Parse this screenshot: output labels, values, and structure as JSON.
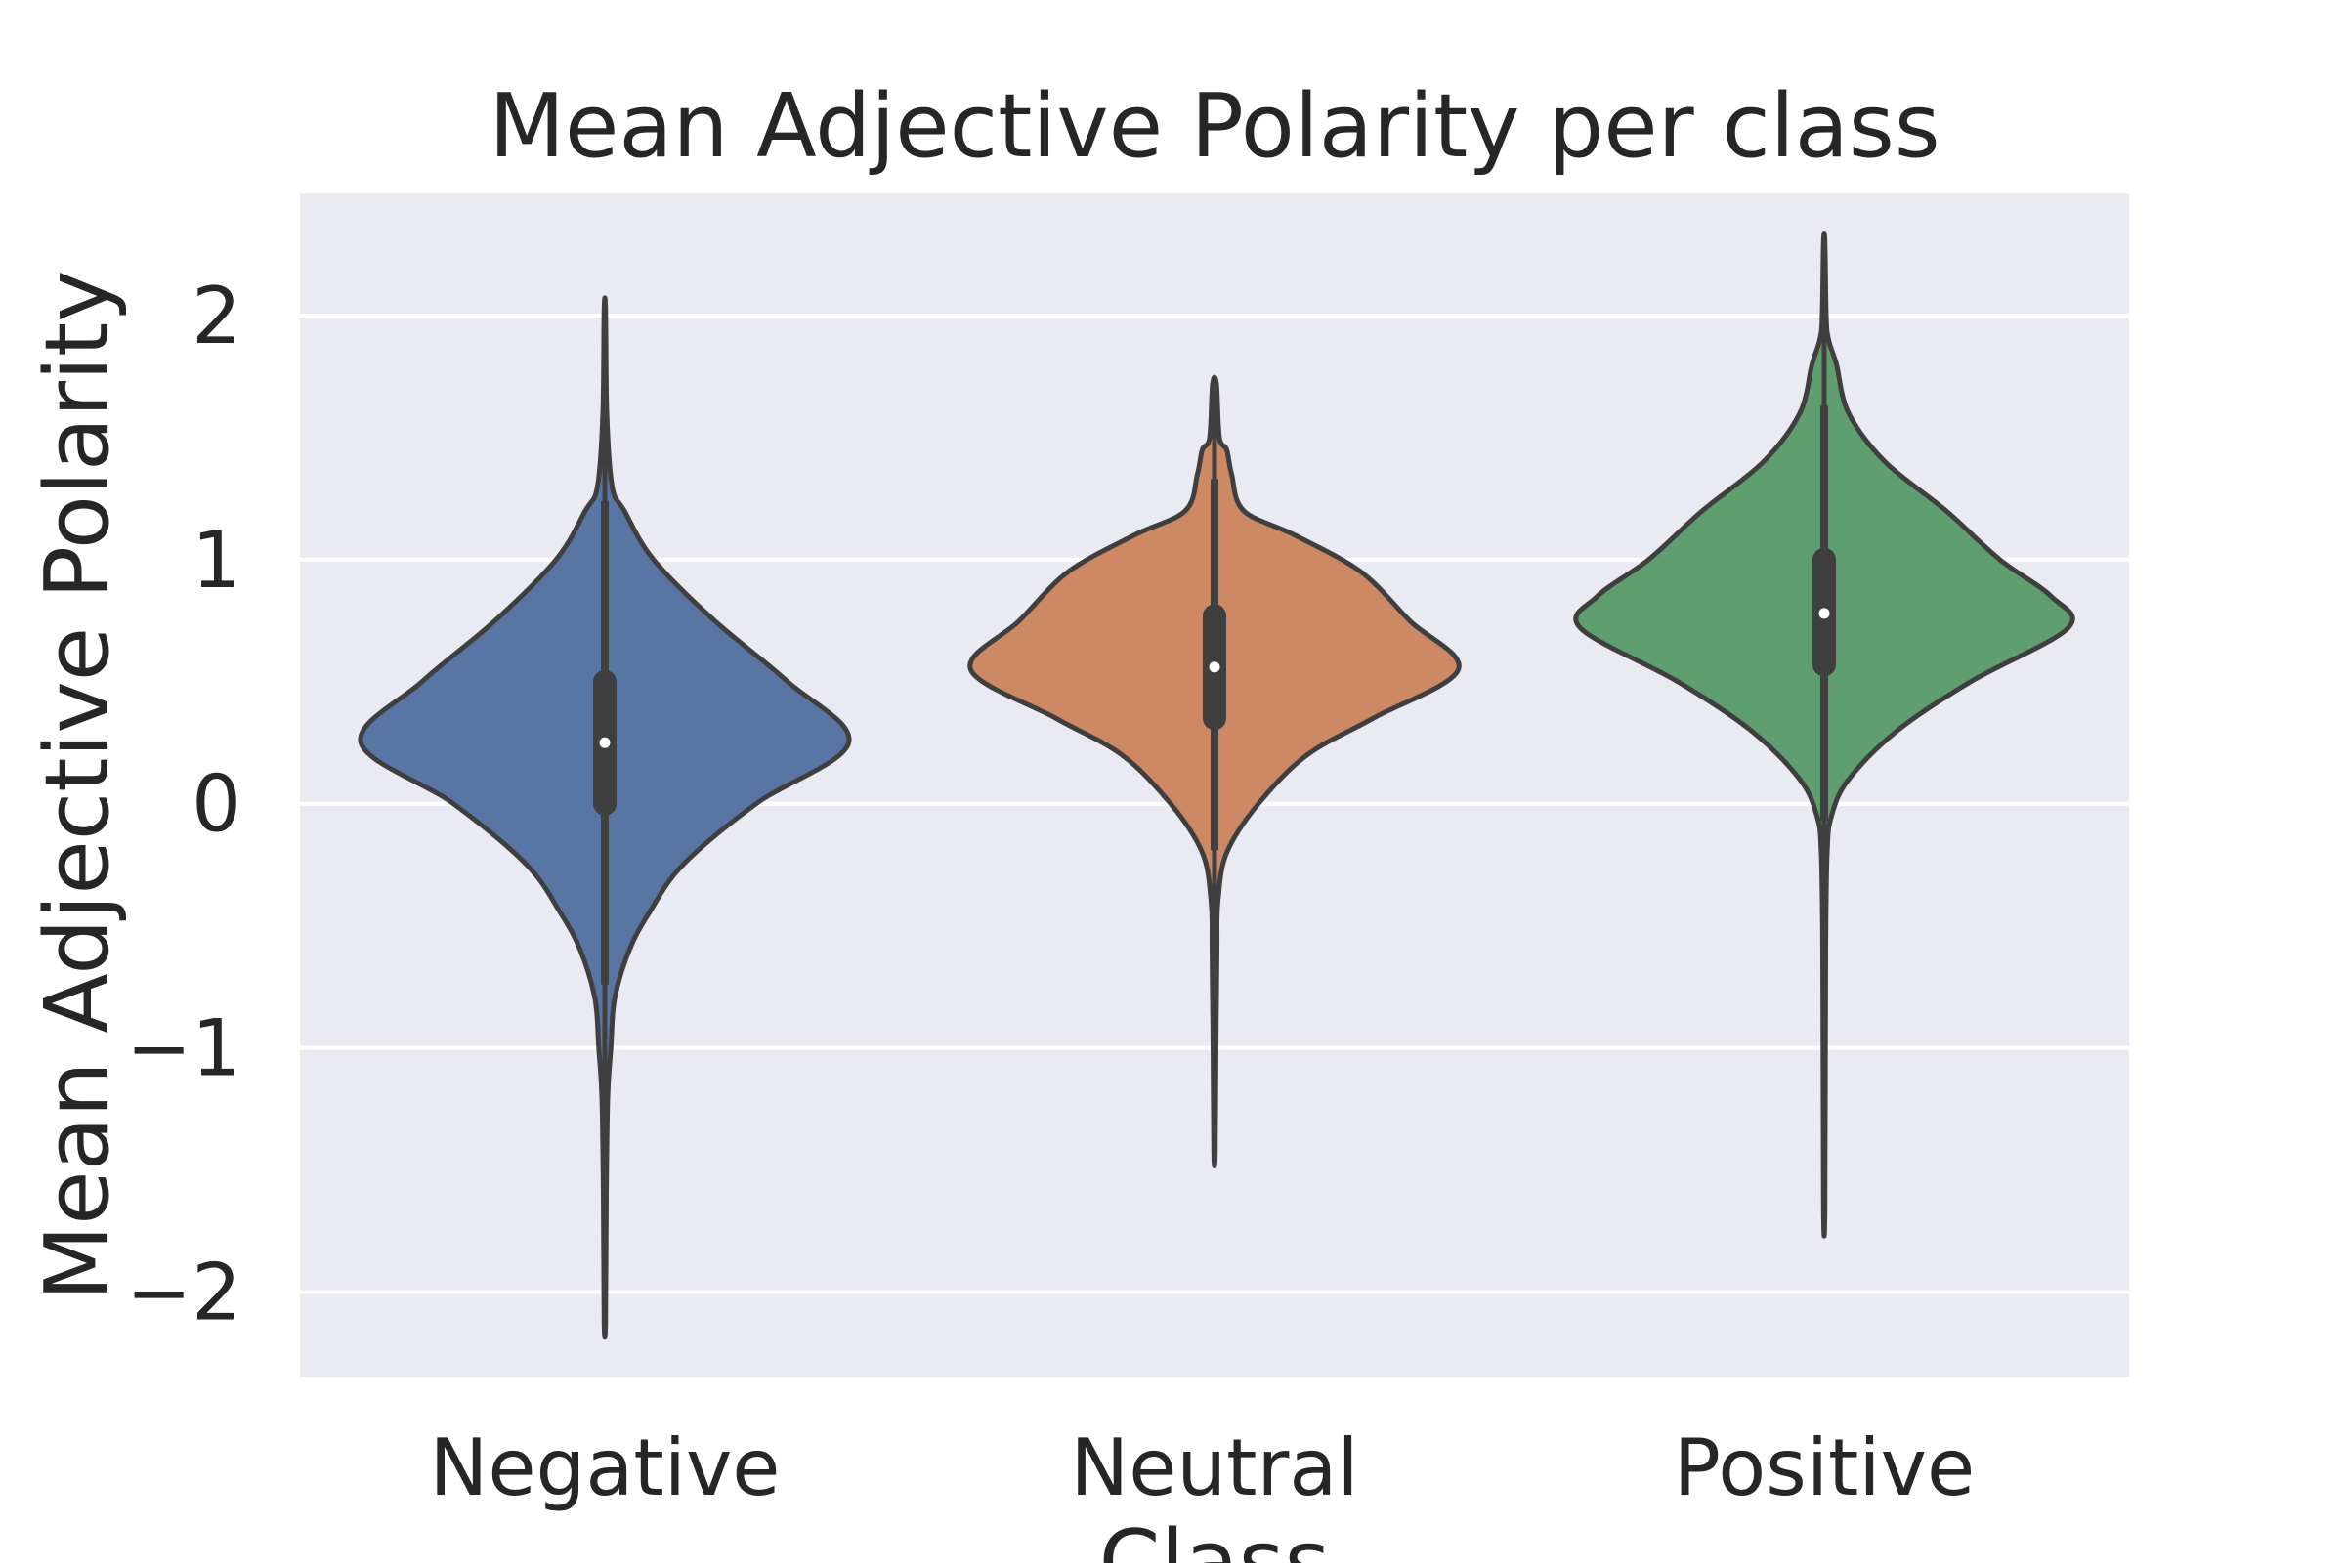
{
  "chart_data": {
    "type": "violin",
    "title": "Mean Adjective Polarity per class",
    "xlabel": "Class",
    "ylabel": "Mean Adjective Polarity",
    "ylim": [
      -2.35,
      2.5
    ],
    "yticks": [
      -2,
      -1,
      0,
      1,
      2
    ],
    "ytick_labels": [
      "−2",
      "−1",
      "0",
      "1",
      "2"
    ],
    "grid": true,
    "background_color": "#eaeaf2",
    "categories": [
      "Negative",
      "Neutral",
      "Positive"
    ],
    "colors": [
      "#5875a4",
      "#cc8963",
      "#5f9e6e"
    ],
    "series": [
      {
        "name": "Negative",
        "min": -2.12,
        "max": 2.02,
        "q1": 0.0,
        "median": 0.25,
        "q3": 0.5,
        "whisker_low": -0.74,
        "whisker_high": 1.24,
        "density": [
          [
            -2.12,
            0.003
          ],
          [
            -1.6,
            0.006
          ],
          [
            -1.2,
            0.012
          ],
          [
            -1.0,
            0.025
          ],
          [
            -0.8,
            0.04
          ],
          [
            -0.6,
            0.1
          ],
          [
            -0.45,
            0.18
          ],
          [
            -0.25,
            0.32
          ],
          [
            0.0,
            0.62
          ],
          [
            0.25,
            1.0
          ],
          [
            0.5,
            0.75
          ],
          [
            0.75,
            0.45
          ],
          [
            1.0,
            0.2
          ],
          [
            1.2,
            0.08
          ],
          [
            1.3,
            0.03
          ],
          [
            1.6,
            0.008
          ],
          [
            2.02,
            0.003
          ]
        ]
      },
      {
        "name": "Neutral",
        "min": -1.43,
        "max": 1.72,
        "q1": 0.35,
        "median": 0.56,
        "q3": 0.77,
        "whisker_low": -0.19,
        "whisker_high": 1.33,
        "density": [
          [
            -1.43,
            0.003
          ],
          [
            -1.0,
            0.006
          ],
          [
            -0.6,
            0.01
          ],
          [
            -0.4,
            0.014
          ],
          [
            -0.2,
            0.05
          ],
          [
            0.0,
            0.18
          ],
          [
            0.2,
            0.38
          ],
          [
            0.35,
            0.65
          ],
          [
            0.55,
            1.0
          ],
          [
            0.75,
            0.8
          ],
          [
            0.95,
            0.6
          ],
          [
            1.1,
            0.33
          ],
          [
            1.2,
            0.12
          ],
          [
            1.35,
            0.07
          ],
          [
            1.45,
            0.05
          ],
          [
            1.5,
            0.02
          ],
          [
            1.72,
            0.008
          ]
        ]
      },
      {
        "name": "Positive",
        "min": -1.64,
        "max": 2.3,
        "q1": 0.57,
        "median": 0.78,
        "q3": 1.0,
        "whisker_low": -0.07,
        "whisker_high": 1.63,
        "density": [
          [
            -1.64,
            0.003
          ],
          [
            -0.6,
            0.006
          ],
          [
            -0.2,
            0.012
          ],
          [
            -0.05,
            0.03
          ],
          [
            0.1,
            0.1
          ],
          [
            0.3,
            0.3
          ],
          [
            0.5,
            0.6
          ],
          [
            0.72,
            1.0
          ],
          [
            0.85,
            0.93
          ],
          [
            1.0,
            0.72
          ],
          [
            1.2,
            0.5
          ],
          [
            1.4,
            0.25
          ],
          [
            1.6,
            0.1
          ],
          [
            1.8,
            0.05
          ],
          [
            1.9,
            0.018
          ],
          [
            2.0,
            0.008
          ],
          [
            2.3,
            0.003
          ]
        ]
      }
    ]
  }
}
